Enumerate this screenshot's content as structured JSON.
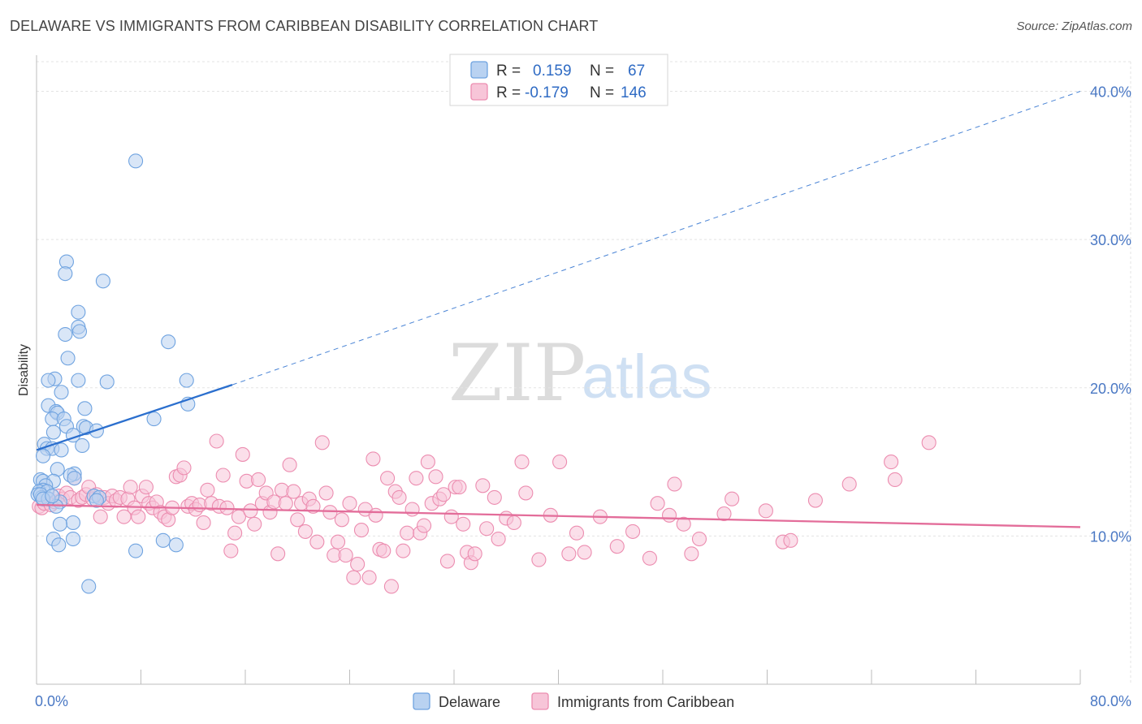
{
  "header": {
    "title": "DELAWARE VS IMMIGRANTS FROM CARIBBEAN DISABILITY CORRELATION CHART",
    "source": "Source: ZipAtlas.com"
  },
  "watermark": {
    "part1": "ZIP",
    "part2": "atlas"
  },
  "colors": {
    "blue": "#6fa3e0",
    "blue_fill": "#b9d2f1",
    "blue_line": "#2b6fce",
    "pink": "#ec8db0",
    "pink_fill": "#f7c5d8",
    "pink_line": "#e36d9a",
    "grid": "#e3e3e3",
    "tick_text": "#4a78c4"
  },
  "legend": {
    "rows": [
      {
        "r_label": "R =",
        "r_value": "0.159",
        "n_label": "N =",
        "n_value": "67"
      },
      {
        "r_label": "R =",
        "r_value": "-0.179",
        "n_label": "N =",
        "n_value": "146"
      }
    ]
  },
  "bottom_legend": {
    "items": [
      "Delaware",
      "Immigrants from Caribbean"
    ]
  },
  "chart_data": {
    "type": "scatter",
    "title": "DELAWARE VS IMMIGRANTS FROM CARIBBEAN DISABILITY CORRELATION CHART",
    "ylabel": "Disability",
    "xlabel": "",
    "xlim": [
      0,
      80
    ],
    "ylim": [
      0,
      42
    ],
    "y_ticks": [
      10,
      20,
      30,
      40
    ],
    "y_tick_labels": [
      "10.0%",
      "20.0%",
      "30.0%",
      "40.0%"
    ],
    "x_tick_labels": [
      "0.0%",
      "80.0%"
    ],
    "grid": true,
    "legend_position": "top-center",
    "series": [
      {
        "name": "Delaware",
        "r": 0.159,
        "n": 67,
        "trend": {
          "x1": 0,
          "y1": 15.8,
          "x2": 15,
          "y2": 20.2,
          "dashed_to_x": 80,
          "dashed_to_y": 40.0
        },
        "points": [
          [
            7.6,
            35.3
          ],
          [
            2.3,
            28.5
          ],
          [
            2.2,
            27.7
          ],
          [
            5.1,
            27.2
          ],
          [
            3.2,
            25.1
          ],
          [
            3.2,
            24.1
          ],
          [
            3.3,
            23.8
          ],
          [
            2.2,
            23.6
          ],
          [
            10.1,
            23.1
          ],
          [
            2.4,
            22.0
          ],
          [
            1.4,
            20.6
          ],
          [
            0.9,
            20.5
          ],
          [
            3.2,
            20.5
          ],
          [
            5.4,
            20.4
          ],
          [
            11.5,
            20.5
          ],
          [
            1.9,
            19.7
          ],
          [
            0.9,
            18.8
          ],
          [
            11.6,
            18.9
          ],
          [
            1.5,
            18.4
          ],
          [
            3.7,
            18.6
          ],
          [
            1.6,
            18.3
          ],
          [
            1.2,
            17.9
          ],
          [
            2.1,
            17.9
          ],
          [
            9.0,
            17.9
          ],
          [
            2.3,
            17.4
          ],
          [
            3.6,
            17.4
          ],
          [
            3.8,
            17.3
          ],
          [
            4.6,
            17.1
          ],
          [
            1.3,
            17.0
          ],
          [
            2.8,
            16.8
          ],
          [
            0.6,
            16.2
          ],
          [
            3.5,
            16.1
          ],
          [
            0.8,
            15.9
          ],
          [
            1.2,
            15.9
          ],
          [
            1.9,
            15.8
          ],
          [
            0.5,
            15.4
          ],
          [
            1.6,
            14.5
          ],
          [
            2.9,
            14.2
          ],
          [
            2.6,
            14.1
          ],
          [
            2.9,
            13.9
          ],
          [
            0.3,
            13.8
          ],
          [
            0.5,
            13.7
          ],
          [
            1.3,
            13.7
          ],
          [
            0.7,
            13.4
          ],
          [
            0.5,
            13.1
          ],
          [
            0.2,
            13.0
          ],
          [
            0.8,
            13.0
          ],
          [
            0.1,
            12.8
          ],
          [
            0.4,
            12.6
          ],
          [
            0.3,
            12.8
          ],
          [
            4.4,
            12.7
          ],
          [
            4.8,
            12.6
          ],
          [
            1.8,
            12.3
          ],
          [
            4.6,
            12.4
          ],
          [
            1.5,
            12.0
          ],
          [
            2.8,
            10.9
          ],
          [
            1.8,
            10.8
          ],
          [
            2.8,
            9.8
          ],
          [
            1.3,
            9.8
          ],
          [
            1.7,
            9.4
          ],
          [
            9.7,
            9.7
          ],
          [
            10.7,
            9.4
          ],
          [
            7.6,
            9.0
          ],
          [
            4.0,
            6.6
          ],
          [
            0.9,
            12.5
          ],
          [
            0.5,
            12.5
          ],
          [
            1.2,
            12.7
          ]
        ]
      },
      {
        "name": "Immigrants from Caribbean",
        "r": -0.179,
        "n": 146,
        "trend": {
          "x1": 0,
          "y1": 12.1,
          "x2": 80,
          "y2": 10.6
        },
        "points": [
          [
            0.2,
            12.0
          ],
          [
            0.4,
            11.9
          ],
          [
            0.6,
            12.2
          ],
          [
            0.9,
            12.5
          ],
          [
            1.1,
            12.1
          ],
          [
            1.4,
            12.3
          ],
          [
            1.7,
            12.7
          ],
          [
            2.0,
            12.5
          ],
          [
            2.3,
            12.9
          ],
          [
            2.6,
            12.6
          ],
          [
            2.9,
            13.9
          ],
          [
            3.2,
            12.4
          ],
          [
            3.5,
            12.6
          ],
          [
            3.8,
            12.8
          ],
          [
            4.0,
            13.3
          ],
          [
            4.3,
            12.5
          ],
          [
            4.6,
            12.8
          ],
          [
            4.9,
            11.3
          ],
          [
            5.2,
            12.6
          ],
          [
            5.5,
            12.2
          ],
          [
            5.8,
            12.7
          ],
          [
            6.1,
            12.4
          ],
          [
            6.4,
            12.6
          ],
          [
            6.7,
            11.3
          ],
          [
            7.0,
            12.5
          ],
          [
            7.2,
            13.3
          ],
          [
            7.5,
            11.9
          ],
          [
            7.8,
            11.3
          ],
          [
            8.1,
            12.7
          ],
          [
            8.4,
            13.3
          ],
          [
            8.6,
            12.2
          ],
          [
            8.9,
            11.9
          ],
          [
            9.2,
            12.3
          ],
          [
            9.5,
            11.6
          ],
          [
            9.8,
            11.3
          ],
          [
            10.1,
            11.1
          ],
          [
            10.4,
            11.9
          ],
          [
            10.7,
            14.0
          ],
          [
            11.0,
            14.1
          ],
          [
            11.3,
            14.6
          ],
          [
            11.6,
            12.0
          ],
          [
            11.9,
            12.2
          ],
          [
            12.2,
            11.8
          ],
          [
            12.5,
            12.1
          ],
          [
            12.8,
            10.9
          ],
          [
            13.1,
            13.1
          ],
          [
            13.4,
            12.2
          ],
          [
            13.8,
            16.4
          ],
          [
            14.0,
            12.0
          ],
          [
            14.3,
            14.1
          ],
          [
            14.6,
            11.9
          ],
          [
            14.9,
            9.0
          ],
          [
            15.2,
            10.2
          ],
          [
            15.5,
            11.3
          ],
          [
            15.8,
            15.5
          ],
          [
            16.1,
            13.7
          ],
          [
            16.4,
            11.7
          ],
          [
            16.7,
            10.8
          ],
          [
            17.0,
            13.8
          ],
          [
            17.3,
            12.2
          ],
          [
            17.6,
            12.9
          ],
          [
            17.9,
            11.6
          ],
          [
            18.2,
            12.3
          ],
          [
            18.5,
            8.8
          ],
          [
            18.8,
            13.1
          ],
          [
            19.1,
            12.2
          ],
          [
            19.4,
            14.8
          ],
          [
            19.7,
            13.0
          ],
          [
            20.0,
            11.1
          ],
          [
            20.3,
            12.2
          ],
          [
            20.6,
            10.3
          ],
          [
            20.9,
            12.5
          ],
          [
            21.2,
            12.0
          ],
          [
            21.5,
            9.6
          ],
          [
            21.9,
            16.3
          ],
          [
            22.2,
            12.9
          ],
          [
            22.5,
            11.6
          ],
          [
            22.8,
            8.7
          ],
          [
            23.1,
            9.6
          ],
          [
            23.4,
            11.1
          ],
          [
            23.7,
            8.7
          ],
          [
            24.0,
            12.2
          ],
          [
            24.3,
            7.2
          ],
          [
            24.6,
            8.1
          ],
          [
            24.9,
            10.4
          ],
          [
            25.2,
            11.8
          ],
          [
            25.5,
            7.2
          ],
          [
            25.8,
            15.2
          ],
          [
            26.0,
            11.4
          ],
          [
            26.3,
            9.1
          ],
          [
            26.6,
            9.0
          ],
          [
            26.9,
            13.9
          ],
          [
            27.2,
            6.6
          ],
          [
            27.5,
            13.0
          ],
          [
            27.8,
            12.6
          ],
          [
            28.1,
            9.0
          ],
          [
            28.4,
            10.2
          ],
          [
            28.8,
            11.8
          ],
          [
            29.1,
            13.9
          ],
          [
            29.4,
            10.2
          ],
          [
            29.7,
            10.7
          ],
          [
            30.0,
            15.0
          ],
          [
            30.3,
            12.2
          ],
          [
            30.6,
            14.0
          ],
          [
            30.9,
            12.5
          ],
          [
            31.2,
            12.8
          ],
          [
            31.5,
            8.3
          ],
          [
            31.8,
            11.3
          ],
          [
            32.1,
            13.3
          ],
          [
            32.4,
            13.3
          ],
          [
            32.7,
            10.8
          ],
          [
            33.0,
            8.9
          ],
          [
            33.3,
            8.2
          ],
          [
            33.6,
            8.8
          ],
          [
            34.2,
            13.4
          ],
          [
            34.5,
            10.5
          ],
          [
            35.1,
            12.6
          ],
          [
            35.4,
            9.8
          ],
          [
            36.0,
            11.2
          ],
          [
            36.6,
            10.9
          ],
          [
            37.2,
            15.0
          ],
          [
            37.5,
            12.9
          ],
          [
            38.5,
            8.4
          ],
          [
            39.4,
            11.4
          ],
          [
            40.1,
            15.0
          ],
          [
            40.8,
            8.8
          ],
          [
            41.4,
            10.2
          ],
          [
            42.0,
            8.9
          ],
          [
            43.2,
            11.3
          ],
          [
            44.5,
            9.3
          ],
          [
            45.7,
            10.3
          ],
          [
            47.0,
            8.5
          ],
          [
            47.6,
            12.2
          ],
          [
            48.5,
            11.4
          ],
          [
            48.9,
            13.5
          ],
          [
            49.6,
            10.8
          ],
          [
            50.2,
            8.8
          ],
          [
            50.8,
            9.8
          ],
          [
            52.7,
            11.5
          ],
          [
            53.3,
            12.5
          ],
          [
            55.9,
            11.7
          ],
          [
            57.2,
            9.6
          ],
          [
            57.8,
            9.7
          ],
          [
            59.7,
            12.4
          ],
          [
            62.3,
            13.5
          ],
          [
            65.5,
            15.0
          ],
          [
            65.8,
            13.8
          ],
          [
            68.4,
            16.3
          ]
        ]
      }
    ]
  }
}
